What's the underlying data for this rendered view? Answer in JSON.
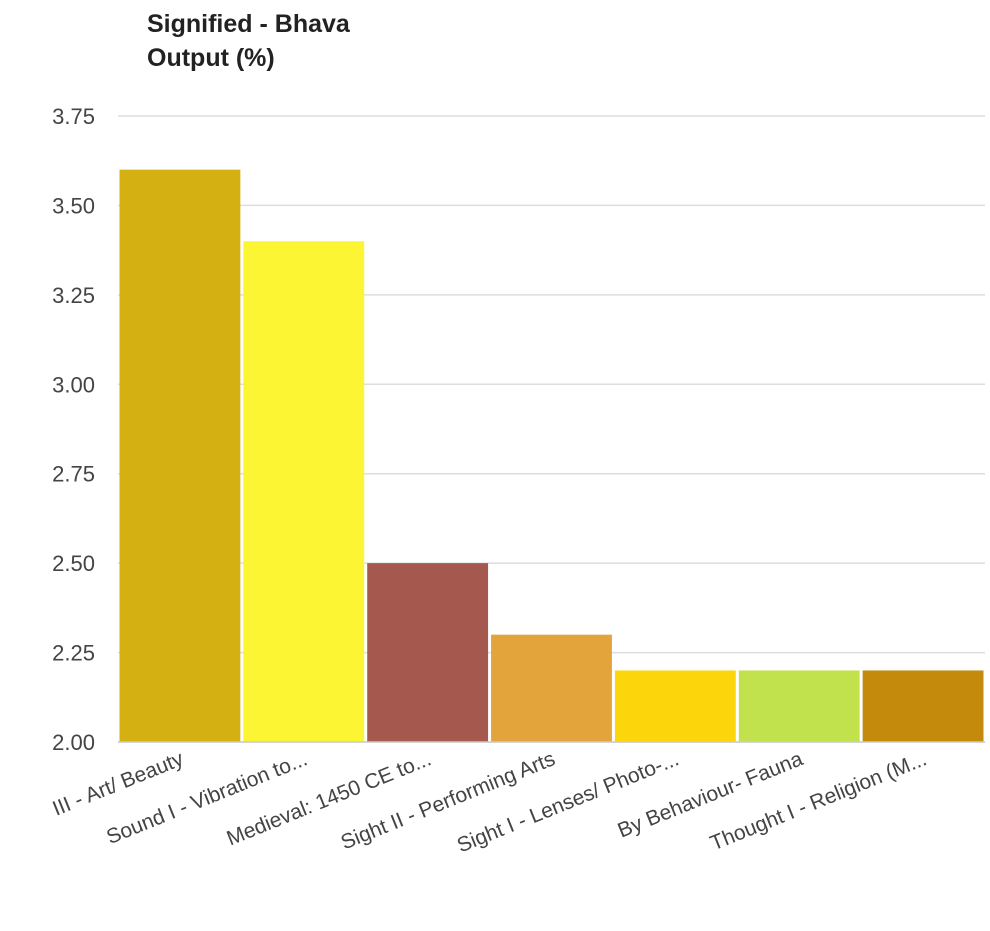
{
  "chart_data": {
    "type": "bar",
    "title": "Signified - Bhava",
    "ylabel": "Output (%)",
    "xlabel": "",
    "categories": [
      "III - Art/ Beauty",
      "Sound I - Vibration to...",
      "Medieval: 1450 CE to...",
      "Sight II - Performing Arts",
      "Sight I - Lenses/ Photo-...",
      "By Behaviour- Fauna",
      "Thought I - Religion (M..."
    ],
    "values": [
      3.6,
      3.4,
      2.5,
      2.3,
      2.2,
      2.2,
      2.2
    ],
    "colors": [
      "#d4b012",
      "#fcf534",
      "#a5594e",
      "#e3a43c",
      "#fcd60a",
      "#c2e24d",
      "#c48a0c"
    ],
    "ylim": [
      2.0,
      3.75
    ],
    "yticks": [
      "2.00",
      "2.25",
      "2.50",
      "2.75",
      "3.00",
      "3.25",
      "3.50",
      "3.75"
    ],
    "grid": true,
    "legend": "none"
  }
}
